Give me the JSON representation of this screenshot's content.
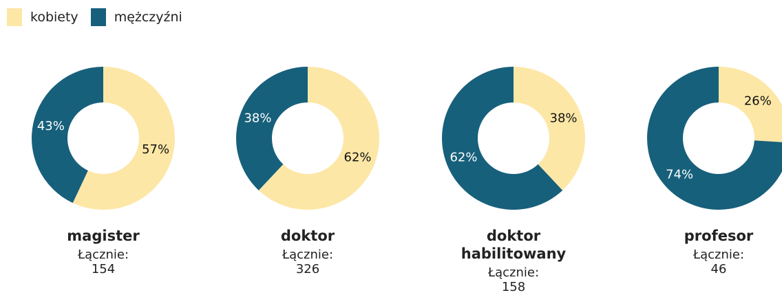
{
  "legend": {
    "items": [
      {
        "name": "kobiety",
        "color": "#fde7a6"
      },
      {
        "name": "mężczyźni",
        "color": "#17607b"
      }
    ]
  },
  "chart_data": [
    {
      "type": "pie",
      "donut": true,
      "title": "magister",
      "values": [
        57,
        43
      ],
      "value_labels": [
        "57%",
        "43%"
      ],
      "total_label": "Łącznie:",
      "total": 154
    },
    {
      "type": "pie",
      "donut": true,
      "title": "doktor",
      "values": [
        62,
        38
      ],
      "value_labels": [
        "62%",
        "38%"
      ],
      "total_label": "Łącznie:",
      "total": 326
    },
    {
      "type": "pie",
      "donut": true,
      "title": "doktor habilitowany",
      "values": [
        38,
        62
      ],
      "value_labels": [
        "38%",
        "62%"
      ],
      "total_label": "Łącznie:",
      "total": 158
    },
    {
      "type": "pie",
      "donut": true,
      "title": "profesor",
      "values": [
        26,
        74
      ],
      "value_labels": [
        "26%",
        "74%"
      ],
      "total_label": "Łącznie:",
      "total": 46
    }
  ]
}
